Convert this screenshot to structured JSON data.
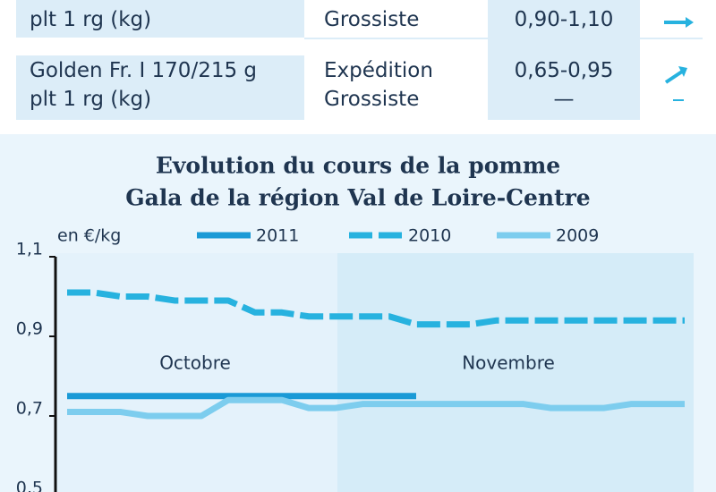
{
  "table": {
    "rows": [
      [
        "plt 1 rg (kg)",
        "Grossiste",
        "0,90-1,10"
      ],
      [
        "Golden Fr. I 170/215 g\nplt 1 rg (kg)",
        "Expédition\nGrossiste",
        "0,65-0,95\n—"
      ]
    ]
  },
  "chart_data": {
    "type": "line",
    "title": [
      "Evolution du cours de la pomme",
      "Gala de la région Val de Loire-Centre"
    ],
    "ylabel": "en €/kg",
    "annotations": [
      "Octobre",
      "Novembre"
    ],
    "categories": [
      null,
      null,
      null,
      null,
      null,
      null,
      null,
      null,
      null,
      null,
      null,
      null,
      null,
      null,
      null,
      null,
      null,
      null,
      null,
      null,
      null,
      null,
      null,
      null
    ],
    "series": [
      {
        "name": "2011",
        "color": "#1a9ad6",
        "style": "solid",
        "values": [
          0.75,
          0.75,
          0.75,
          0.75,
          0.75,
          0.75,
          0.75,
          0.75,
          0.75,
          0.75,
          0.75,
          0.75,
          0.75,
          0.75,
          null,
          null,
          null,
          null,
          null,
          null,
          null,
          null,
          null,
          null
        ]
      },
      {
        "name": "2010",
        "color": "#27b2df",
        "style": "dashed",
        "values": [
          1.01,
          1.01,
          1.0,
          1.0,
          0.99,
          0.99,
          0.99,
          0.96,
          0.96,
          0.95,
          0.95,
          0.95,
          0.95,
          0.93,
          0.93,
          0.93,
          0.94,
          0.94,
          0.94,
          0.94,
          0.94,
          0.94,
          0.94,
          0.94
        ]
      },
      {
        "name": "2009",
        "color": "#7dcdee",
        "style": "solid",
        "values": [
          0.71,
          0.71,
          0.71,
          0.7,
          0.7,
          0.7,
          0.74,
          0.74,
          0.74,
          0.72,
          0.72,
          0.73,
          0.73,
          0.73,
          0.73,
          0.73,
          0.73,
          0.73,
          0.72,
          0.72,
          0.72,
          0.73,
          0.73,
          0.73
        ]
      }
    ],
    "ylim": [
      0.5,
      1.1
    ],
    "yticks": [
      {
        "value": 0.5,
        "label": "0,5"
      },
      {
        "value": 0.7,
        "label": "0,7"
      },
      {
        "value": 0.9,
        "label": "0,9"
      },
      {
        "value": 1.1,
        "label": "1,1"
      }
    ],
    "grid": false
  }
}
